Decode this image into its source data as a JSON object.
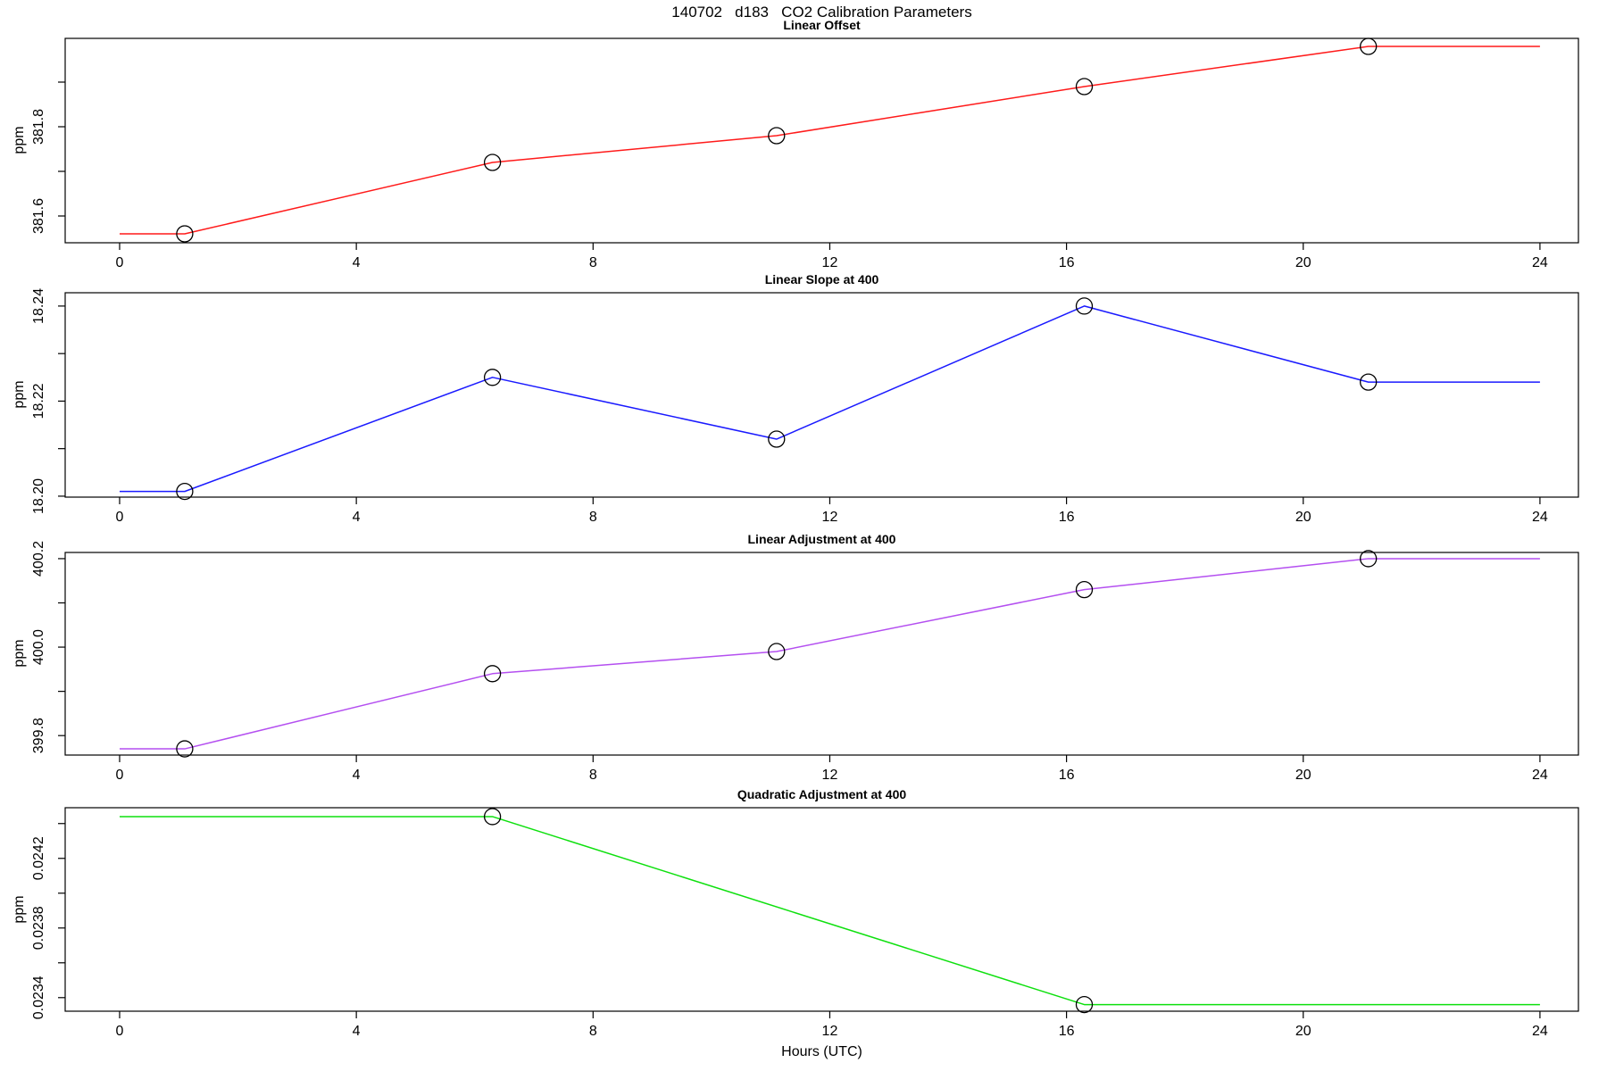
{
  "main_title": "140702   d183   CO2 Calibration Parameters",
  "x_axis": {
    "label": "Hours (UTC)",
    "ticks": [
      0,
      4,
      8,
      12,
      16,
      20,
      24
    ],
    "lim": [
      -0.92,
      24.65
    ]
  },
  "chart_data": [
    {
      "type": "line",
      "title": "Linear Offset",
      "ylabel": "ppm",
      "color": "#ff1a1a",
      "x": [
        0,
        1.1,
        6.3,
        11.1,
        16.3,
        21.1,
        24
      ],
      "y": [
        381.56,
        381.56,
        381.72,
        381.78,
        381.89,
        381.98,
        381.98
      ],
      "markers": {
        "x": [
          1.1,
          6.3,
          11.1,
          16.3,
          21.1
        ],
        "y": [
          381.56,
          381.72,
          381.78,
          381.89,
          381.98
        ]
      },
      "ylim": [
        381.54,
        381.998
      ],
      "yticks": [
        {
          "v": 381.6,
          "label": "381.6"
        },
        {
          "v": 381.7,
          "label": ""
        },
        {
          "v": 381.8,
          "label": "381.8"
        },
        {
          "v": 381.9,
          "label": ""
        }
      ]
    },
    {
      "type": "line",
      "title": "Linear Slope at 400",
      "ylabel": "ppm",
      "color": "#1a1aff",
      "x": [
        0,
        1.1,
        6.3,
        11.1,
        16.3,
        21.1,
        24
      ],
      "y": [
        18.201,
        18.201,
        18.225,
        18.212,
        18.24,
        18.224,
        18.224
      ],
      "markers": {
        "x": [
          1.1,
          6.3,
          11.1,
          16.3,
          21.1
        ],
        "y": [
          18.201,
          18.225,
          18.212,
          18.24,
          18.224
        ]
      },
      "ylim": [
        18.1998,
        18.2428
      ],
      "yticks": [
        {
          "v": 18.2,
          "label": "18.20"
        },
        {
          "v": 18.21,
          "label": ""
        },
        {
          "v": 18.22,
          "label": "18.22"
        },
        {
          "v": 18.23,
          "label": ""
        },
        {
          "v": 18.24,
          "label": "18.24"
        }
      ]
    },
    {
      "type": "line",
      "title": "Linear Adjustment at 400",
      "ylabel": "ppm",
      "color": "#b44ff0",
      "x": [
        0,
        1.1,
        6.3,
        11.1,
        16.3,
        21.1,
        24
      ],
      "y": [
        399.77,
        399.77,
        399.94,
        399.99,
        400.13,
        400.2,
        400.2
      ],
      "markers": {
        "x": [
          1.1,
          6.3,
          11.1,
          16.3,
          21.1
        ],
        "y": [
          399.77,
          399.94,
          399.99,
          400.13,
          400.2
        ]
      },
      "ylim": [
        399.756,
        400.214
      ],
      "yticks": [
        {
          "v": 399.8,
          "label": "399.8"
        },
        {
          "v": 399.9,
          "label": ""
        },
        {
          "v": 400.0,
          "label": "400.0"
        },
        {
          "v": 400.1,
          "label": ""
        },
        {
          "v": 400.2,
          "label": "400.2"
        }
      ]
    },
    {
      "type": "line",
      "title": "Quadratic Adjustment at 400",
      "ylabel": "ppm",
      "color": "#0ee00e",
      "x": [
        0,
        6.3,
        16.3,
        24
      ],
      "y": [
        0.02444,
        0.02444,
        0.02336,
        0.02336
      ],
      "markers": {
        "x": [
          6.3,
          16.3
        ],
        "y": [
          0.02444,
          0.02336
        ]
      },
      "ylim": [
        0.023322,
        0.024491
      ],
      "yticks": [
        {
          "v": 0.0234,
          "label": "0.0234"
        },
        {
          "v": 0.0236,
          "label": ""
        },
        {
          "v": 0.0238,
          "label": "0.0238"
        },
        {
          "v": 0.024,
          "label": ""
        },
        {
          "v": 0.0242,
          "label": "0.0242"
        },
        {
          "v": 0.0244,
          "label": ""
        }
      ]
    }
  ]
}
